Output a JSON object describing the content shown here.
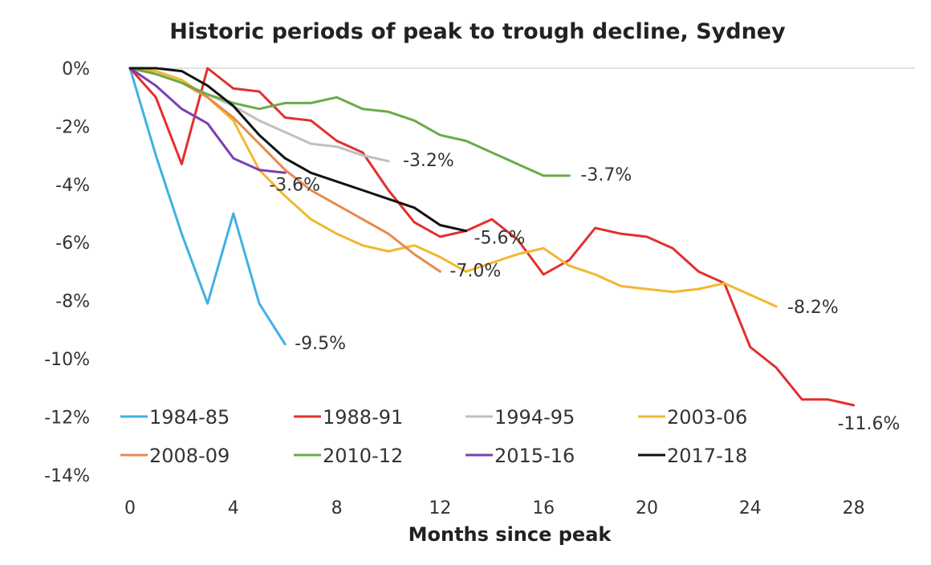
{
  "chart_data": {
    "type": "line",
    "title": "Historic periods of peak to trough decline, Sydney",
    "xlabel": "Months since peak",
    "ylabel": "",
    "xlim": [
      0,
      30
    ],
    "ylim": [
      -14,
      0
    ],
    "x_ticks": [
      0,
      4,
      8,
      12,
      16,
      20,
      24,
      28
    ],
    "y_ticks": [
      0,
      -2,
      -4,
      -6,
      -8,
      -10,
      -12,
      -14
    ],
    "y_tick_labels": [
      "0%",
      "-2%",
      "-4%",
      "-6%",
      "-8%",
      "-10%",
      "-12%",
      "-14%"
    ],
    "grid": "horizontal line at 0% only",
    "legend_position": "bottom-left, inside plot",
    "series": [
      {
        "name": "1984-85",
        "color": "#3fb1e3",
        "end_label": "-9.5%",
        "x": [
          0,
          1,
          2,
          3,
          4,
          5,
          6
        ],
        "y": [
          0,
          -3.0,
          -5.7,
          -8.1,
          -5.0,
          -8.1,
          -9.5
        ]
      },
      {
        "name": "1988-91",
        "color": "#e2302d",
        "end_label": "-11.6%",
        "x": [
          0,
          1,
          2,
          3,
          4,
          5,
          6,
          7,
          8,
          9,
          10,
          11,
          12,
          13,
          14,
          15,
          16,
          17,
          18,
          19,
          20,
          21,
          22,
          23,
          24,
          25,
          26,
          27,
          28
        ],
        "y": [
          0,
          -1.0,
          -3.3,
          0.0,
          -0.7,
          -0.8,
          -1.7,
          -1.8,
          -2.5,
          -2.9,
          -4.2,
          -5.3,
          -5.8,
          -5.6,
          -5.2,
          -5.9,
          -7.1,
          -6.6,
          -5.5,
          -5.7,
          -5.8,
          -6.2,
          -7.0,
          -7.4,
          -9.6,
          -10.3,
          -11.4,
          -11.4,
          -11.6
        ]
      },
      {
        "name": "1994-95",
        "color": "#c0c0c0",
        "end_label": "-3.2%",
        "x": [
          0,
          1,
          2,
          3,
          4,
          5,
          6,
          7,
          8,
          9,
          10
        ],
        "y": [
          0,
          -0.2,
          -0.5,
          -0.9,
          -1.3,
          -1.8,
          -2.2,
          -2.6,
          -2.7,
          -3.0,
          -3.2
        ]
      },
      {
        "name": "2003-06",
        "color": "#f2b731",
        "end_label": "-8.2%",
        "x": [
          0,
          1,
          2,
          3,
          4,
          5,
          6,
          7,
          8,
          9,
          10,
          11,
          12,
          13,
          14,
          15,
          16,
          17,
          18,
          19,
          20,
          21,
          22,
          23,
          24,
          25
        ],
        "y": [
          0,
          -0.1,
          -0.4,
          -1.0,
          -1.8,
          -3.5,
          -4.4,
          -5.2,
          -5.7,
          -6.1,
          -6.3,
          -6.1,
          -6.5,
          -7.0,
          -6.7,
          -6.4,
          -6.2,
          -6.8,
          -7.1,
          -7.5,
          -7.6,
          -7.7,
          -7.6,
          -7.4,
          -7.8,
          -8.2
        ]
      },
      {
        "name": "2008-09",
        "color": "#e88a4c",
        "end_label": "-7.0%",
        "x": [
          0,
          1,
          2,
          3,
          4,
          5,
          6,
          7,
          8,
          9,
          10,
          11,
          12
        ],
        "y": [
          0,
          -0.2,
          -0.5,
          -1.0,
          -1.7,
          -2.6,
          -3.5,
          -4.2,
          -4.7,
          -5.2,
          -5.7,
          -6.4,
          -7.0
        ]
      },
      {
        "name": "2010-12",
        "color": "#6aab49",
        "end_label": "-3.7%",
        "x": [
          0,
          1,
          2,
          3,
          4,
          5,
          6,
          7,
          8,
          9,
          10,
          11,
          12,
          13,
          14,
          15,
          16,
          17
        ],
        "y": [
          0,
          -0.2,
          -0.5,
          -0.9,
          -1.2,
          -1.4,
          -1.2,
          -1.2,
          -1.0,
          -1.4,
          -1.5,
          -1.8,
          -2.3,
          -2.5,
          -2.9,
          -3.3,
          -3.7,
          -3.7
        ]
      },
      {
        "name": "2015-16",
        "color": "#7d3fb1",
        "end_label": "-3.6%",
        "x": [
          0,
          1,
          2,
          3,
          4,
          5,
          6
        ],
        "y": [
          0,
          -0.6,
          -1.4,
          -1.9,
          -3.1,
          -3.5,
          -3.6
        ]
      },
      {
        "name": "2017-18",
        "color": "#111111",
        "end_label": "-5.6%",
        "x": [
          0,
          1,
          2,
          3,
          4,
          5,
          6,
          7,
          8,
          9,
          10,
          11,
          12,
          13
        ],
        "y": [
          0,
          0,
          -0.1,
          -0.6,
          -1.3,
          -2.3,
          -3.1,
          -3.6,
          -3.9,
          -4.2,
          -4.5,
          -4.8,
          -5.4,
          -5.6
        ]
      }
    ]
  }
}
